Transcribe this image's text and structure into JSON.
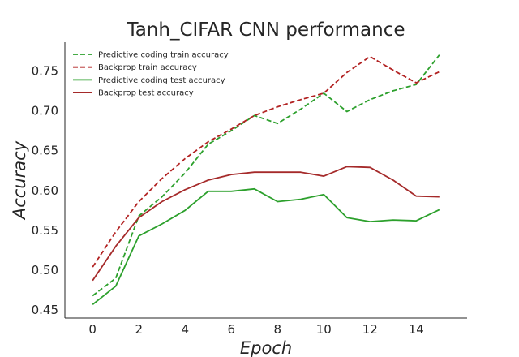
{
  "chart_data": {
    "type": "line",
    "title": "Tanh_CIFAR CNN performance",
    "xlabel": "Epoch",
    "ylabel": "Accuracy",
    "xlim": [
      -1.2,
      16.2
    ],
    "ylim": [
      0.44,
      0.786
    ],
    "xticks": [
      "0",
      "2",
      "4",
      "6",
      "8",
      "10",
      "12",
      "14"
    ],
    "yticks": [
      "0.45",
      "0.50",
      "0.55",
      "0.60",
      "0.65",
      "0.70",
      "0.75"
    ],
    "grid": false,
    "legend_position": "top-left",
    "x": [
      0,
      1,
      2,
      3,
      4,
      5,
      6,
      7,
      8,
      9,
      10,
      11,
      12,
      13,
      14,
      15
    ],
    "series": [
      {
        "name": "Predictive coding train accuracy",
        "color": "#2ca02c",
        "style": "dashed",
        "values": [
          0.468,
          0.49,
          0.568,
          0.592,
          0.622,
          0.658,
          0.675,
          0.694,
          0.684,
          0.702,
          0.722,
          0.699,
          0.714,
          0.725,
          0.733,
          0.77
        ]
      },
      {
        "name": "Backprop train accuracy",
        "color": "#b22222",
        "style": "dashed",
        "values": [
          0.504,
          0.548,
          0.586,
          0.615,
          0.64,
          0.661,
          0.677,
          0.694,
          0.705,
          0.714,
          0.722,
          0.748,
          0.768,
          0.751,
          0.735,
          0.749
        ]
      },
      {
        "name": "Predictive coding test accuracy",
        "color": "#2ca02c",
        "style": "solid",
        "values": [
          0.457,
          0.48,
          0.543,
          0.558,
          0.575,
          0.599,
          0.599,
          0.602,
          0.586,
          0.589,
          0.595,
          0.566,
          0.561,
          0.563,
          0.562,
          0.576
        ]
      },
      {
        "name": "Backprop test accuracy",
        "color": "#a52a2a",
        "style": "solid",
        "values": [
          0.487,
          0.53,
          0.566,
          0.586,
          0.601,
          0.613,
          0.62,
          0.623,
          0.623,
          0.623,
          0.618,
          0.63,
          0.629,
          0.613,
          0.593,
          0.592
        ]
      }
    ]
  }
}
